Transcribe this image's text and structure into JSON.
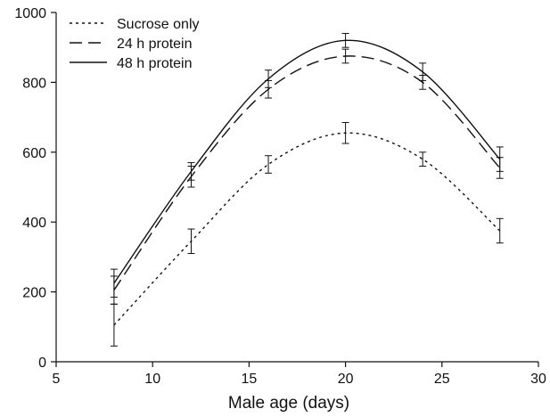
{
  "chart_data": {
    "type": "line",
    "title": "",
    "xlabel": "Male age (days)",
    "ylabel": "",
    "xlim": [
      5,
      30
    ],
    "ylim": [
      0,
      1000
    ],
    "xticks": [
      5,
      10,
      15,
      20,
      25,
      30
    ],
    "yticks": [
      0,
      200,
      400,
      600,
      800,
      1000
    ],
    "x": [
      8,
      12,
      16,
      20,
      24,
      28
    ],
    "grid": false,
    "legend_position": "top-left",
    "series": [
      {
        "name": "Sucrose only",
        "style": "dotted",
        "color": "#111111",
        "values": [
          105,
          345,
          565,
          655,
          580,
          375
        ],
        "error": [
          60,
          35,
          25,
          30,
          20,
          35
        ]
      },
      {
        "name": "24 h protein",
        "style": "dashed",
        "color": "#111111",
        "values": [
          205,
          530,
          780,
          875,
          800,
          555
        ],
        "error": [
          40,
          30,
          25,
          20,
          20,
          30
        ]
      },
      {
        "name": "48 h protein",
        "style": "solid",
        "color": "#111111",
        "values": [
          225,
          545,
          810,
          920,
          830,
          580
        ],
        "error": [
          40,
          25,
          25,
          20,
          25,
          35
        ]
      }
    ]
  }
}
